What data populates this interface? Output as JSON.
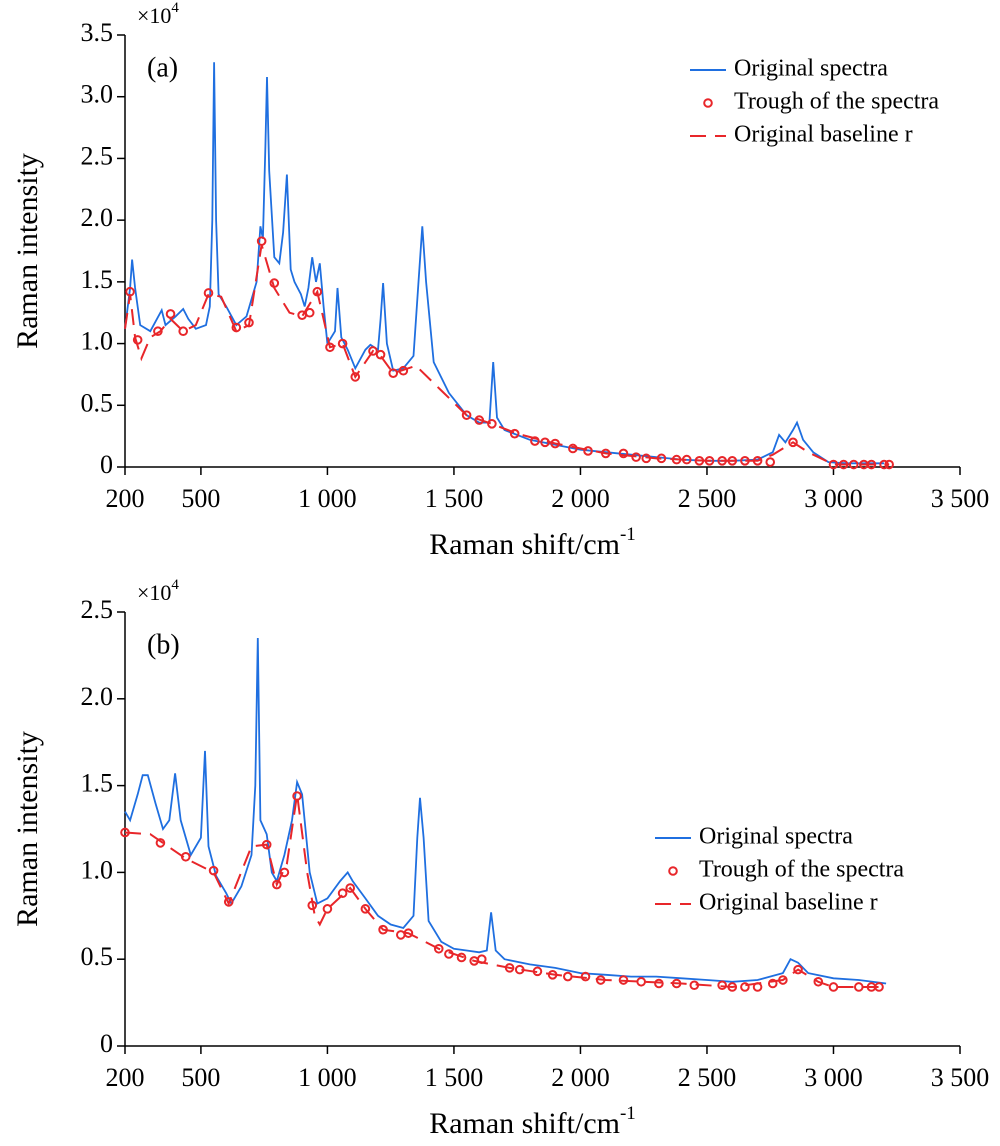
{
  "chart_data": [
    {
      "type": "line",
      "panel_label": "(a)",
      "multiplier": {
        "base": "×10",
        "exponent": "4"
      },
      "x_label": "Raman shift/cm",
      "x_label_sup": "-1",
      "y_label": "Raman intensity",
      "xlim": [
        200,
        3500
      ],
      "ylim": [
        0,
        3.5
      ],
      "xticks": [
        200,
        500,
        {
          "value": 1000,
          "label": "1 000"
        },
        {
          "value": 1500,
          "label": "1 500"
        },
        {
          "value": 2000,
          "label": "2 000"
        },
        {
          "value": 2500,
          "label": "2 500"
        },
        {
          "value": 3000,
          "label": "3 000"
        },
        {
          "value": 3500,
          "label": "3 500"
        }
      ],
      "yticks": [
        0,
        0.5,
        {
          "value": 1,
          "label": "1.0"
        },
        1.5,
        {
          "value": 2,
          "label": "2.0"
        },
        2.5,
        {
          "value": 3,
          "label": "3.0"
        },
        3.5
      ],
      "legend_loc": "upper right",
      "series": [
        {
          "name": "Original spectra",
          "color": "#1f6fe0",
          "style": "line",
          "x": [
            200,
            220,
            228,
            240,
            260,
            300,
            345,
            360,
            400,
            430,
            450,
            480,
            520,
            535,
            545,
            552,
            560,
            570,
            600,
            640,
            680,
            720,
            735,
            745,
            755,
            761,
            770,
            790,
            810,
            825,
            840,
            855,
            870,
            895,
            910,
            925,
            940,
            955,
            970,
            985,
            1000,
            1030,
            1040,
            1055,
            1080,
            1110,
            1150,
            1170,
            1200,
            1210,
            1220,
            1235,
            1260,
            1300,
            1340,
            1360,
            1375,
            1390,
            1420,
            1480,
            1550,
            1600,
            1640,
            1655,
            1670,
            1700,
            1800,
            1900,
            2000,
            2100,
            2200,
            2300,
            2400,
            2500,
            2600,
            2700,
            2760,
            2785,
            2810,
            2840,
            2856,
            2880,
            2920,
            2980,
            3050,
            3100,
            3200
          ],
          "values": [
            1.12,
            1.45,
            1.68,
            1.45,
            1.15,
            1.1,
            1.27,
            1.15,
            1.22,
            1.28,
            1.2,
            1.12,
            1.15,
            1.3,
            2.0,
            3.28,
            2.0,
            1.4,
            1.3,
            1.15,
            1.22,
            1.5,
            1.95,
            1.85,
            2.6,
            3.16,
            2.4,
            1.7,
            1.65,
            1.9,
            2.37,
            1.6,
            1.5,
            1.4,
            1.3,
            1.45,
            1.7,
            1.5,
            1.65,
            1.3,
            1.0,
            1.1,
            1.45,
            1.05,
            0.95,
            0.8,
            0.95,
            0.99,
            0.95,
            1.2,
            1.49,
            1.0,
            0.78,
            0.8,
            0.9,
            1.5,
            1.95,
            1.5,
            0.85,
            0.6,
            0.42,
            0.36,
            0.36,
            0.85,
            0.4,
            0.3,
            0.22,
            0.18,
            0.14,
            0.12,
            0.1,
            0.08,
            0.06,
            0.05,
            0.05,
            0.06,
            0.12,
            0.26,
            0.2,
            0.3,
            0.36,
            0.22,
            0.12,
            0.04,
            0.03,
            0.03,
            0.03
          ]
        },
        {
          "name": "Trough of the spectra",
          "color": "#e8262a",
          "style": "markers",
          "x": [
            220,
            250,
            330,
            380,
            430,
            530,
            640,
            690,
            740,
            790,
            900,
            930,
            960,
            1010,
            1060,
            1110,
            1180,
            1210,
            1260,
            1300,
            1550,
            1600,
            1650,
            1740,
            1820,
            1860,
            1900,
            1970,
            2030,
            2100,
            2170,
            2220,
            2260,
            2320,
            2380,
            2420,
            2470,
            2510,
            2560,
            2600,
            2650,
            2700,
            2750,
            2840,
            3000,
            3040,
            3080,
            3120,
            3150,
            3200,
            3220
          ],
          "values": [
            1.42,
            1.03,
            1.1,
            1.24,
            1.1,
            1.41,
            1.13,
            1.17,
            1.83,
            1.49,
            1.23,
            1.25,
            1.42,
            0.97,
            1.0,
            0.73,
            0.94,
            0.91,
            0.76,
            0.78,
            0.42,
            0.38,
            0.35,
            0.27,
            0.21,
            0.2,
            0.19,
            0.15,
            0.13,
            0.11,
            0.11,
            0.08,
            0.07,
            0.07,
            0.06,
            0.06,
            0.05,
            0.05,
            0.05,
            0.05,
            0.05,
            0.05,
            0.04,
            0.2,
            0.02,
            0.02,
            0.02,
            0.02,
            0.02,
            0.02,
            0.02
          ]
        },
        {
          "name": "Original baseline r",
          "color": "#e8262a",
          "style": "dashed",
          "x": [
            200,
            220,
            240,
            265,
            300,
            340,
            380,
            430,
            480,
            530,
            580,
            640,
            690,
            740,
            790,
            850,
            900,
            960,
            1010,
            1060,
            1110,
            1180,
            1210,
            1260,
            1350,
            1450,
            1550,
            1650,
            1750,
            1900,
            2100,
            2300,
            2500,
            2700,
            2760,
            2840,
            2900,
            3000,
            3220
          ],
          "values": [
            1.12,
            1.4,
            1.05,
            0.88,
            1.05,
            1.1,
            1.2,
            1.1,
            1.15,
            1.4,
            1.38,
            1.1,
            1.15,
            1.8,
            1.45,
            1.25,
            1.22,
            1.42,
            0.97,
            1.0,
            0.73,
            0.94,
            0.9,
            0.76,
            0.82,
            0.62,
            0.42,
            0.35,
            0.27,
            0.19,
            0.11,
            0.07,
            0.05,
            0.05,
            0.1,
            0.2,
            0.12,
            0.02,
            0.02
          ]
        }
      ]
    },
    {
      "type": "line",
      "panel_label": "(b)",
      "multiplier": {
        "base": "×10",
        "exponent": "4"
      },
      "x_label": "Raman shift/cm",
      "x_label_sup": "-1",
      "y_label": "Raman intensity",
      "xlim": [
        200,
        3500
      ],
      "ylim": [
        0,
        2.5
      ],
      "xticks": [
        200,
        500,
        {
          "value": 1000,
          "label": "1 000"
        },
        {
          "value": 1500,
          "label": "1 500"
        },
        {
          "value": 2000,
          "label": "2 000"
        },
        {
          "value": 2500,
          "label": "2 500"
        },
        {
          "value": 3000,
          "label": "3 000"
        },
        {
          "value": 3500,
          "label": "3 500"
        }
      ],
      "yticks": [
        0,
        0.5,
        {
          "value": 1,
          "label": "1.0"
        },
        1.5,
        {
          "value": 2,
          "label": "2.0"
        },
        2.5
      ],
      "legend_loc": "lower right",
      "series": [
        {
          "name": "Original spectra",
          "color": "#1f6fe0",
          "style": "line",
          "x": [
            200,
            220,
            250,
            270,
            290,
            320,
            350,
            375,
            398,
            420,
            460,
            500,
            516,
            530,
            560,
            600,
            620,
            660,
            700,
            715,
            725,
            735,
            760,
            780,
            800,
            830,
            860,
            880,
            900,
            930,
            960,
            1000,
            1050,
            1080,
            1100,
            1150,
            1200,
            1250,
            1300,
            1340,
            1355,
            1366,
            1380,
            1400,
            1450,
            1500,
            1550,
            1600,
            1630,
            1647,
            1665,
            1700,
            1800,
            1900,
            2000,
            2100,
            2200,
            2300,
            2400,
            2500,
            2600,
            2700,
            2800,
            2830,
            2860,
            2900,
            3000,
            3100,
            3208
          ],
          "values": [
            1.35,
            1.3,
            1.45,
            1.56,
            1.56,
            1.4,
            1.25,
            1.3,
            1.57,
            1.3,
            1.1,
            1.2,
            1.7,
            1.15,
            0.98,
            0.88,
            0.82,
            0.92,
            1.1,
            1.5,
            2.35,
            1.3,
            1.22,
            1.0,
            0.95,
            1.1,
            1.3,
            1.52,
            1.45,
            1.0,
            0.82,
            0.85,
            0.95,
            1.0,
            0.95,
            0.85,
            0.75,
            0.7,
            0.68,
            0.75,
            1.2,
            1.43,
            1.2,
            0.72,
            0.6,
            0.56,
            0.55,
            0.54,
            0.55,
            0.77,
            0.55,
            0.5,
            0.47,
            0.45,
            0.42,
            0.41,
            0.4,
            0.4,
            0.39,
            0.38,
            0.37,
            0.38,
            0.42,
            0.5,
            0.48,
            0.42,
            0.39,
            0.38,
            0.36
          ]
        },
        {
          "name": "Trough of the spectra",
          "color": "#e8262a",
          "style": "markers",
          "x": [
            200,
            340,
            440,
            550,
            610,
            760,
            800,
            830,
            880,
            940,
            1000,
            1060,
            1090,
            1150,
            1220,
            1290,
            1320,
            1440,
            1480,
            1530,
            1580,
            1610,
            1720,
            1760,
            1830,
            1890,
            1950,
            2020,
            2080,
            2170,
            2240,
            2310,
            2380,
            2450,
            2560,
            2600,
            2650,
            2700,
            2760,
            2800,
            2860,
            2940,
            3000,
            3100,
            3150,
            3180
          ],
          "values": [
            1.23,
            1.17,
            1.09,
            1.01,
            0.83,
            1.16,
            0.93,
            1.0,
            1.44,
            0.81,
            0.79,
            0.88,
            0.91,
            0.79,
            0.67,
            0.64,
            0.65,
            0.56,
            0.53,
            0.51,
            0.49,
            0.5,
            0.45,
            0.44,
            0.43,
            0.41,
            0.4,
            0.4,
            0.38,
            0.38,
            0.37,
            0.36,
            0.36,
            0.35,
            0.35,
            0.34,
            0.34,
            0.34,
            0.36,
            0.38,
            0.44,
            0.37,
            0.34,
            0.34,
            0.34,
            0.34
          ]
        },
        {
          "name": "Original baseline r",
          "color": "#e8262a",
          "style": "dashed",
          "x": [
            200,
            300,
            440,
            550,
            610,
            700,
            760,
            800,
            840,
            880,
            920,
            950,
            970,
            1000,
            1090,
            1150,
            1220,
            1320,
            1440,
            1580,
            1720,
            1900,
            2100,
            2400,
            2600,
            2800,
            2860,
            2940,
            3000,
            3180
          ],
          "values": [
            1.23,
            1.22,
            1.08,
            1.0,
            0.82,
            1.15,
            1.16,
            0.93,
            1.05,
            1.45,
            1.0,
            0.75,
            0.7,
            0.79,
            0.91,
            0.79,
            0.67,
            0.65,
            0.56,
            0.49,
            0.45,
            0.41,
            0.38,
            0.36,
            0.34,
            0.38,
            0.44,
            0.37,
            0.34,
            0.34
          ]
        }
      ]
    }
  ]
}
